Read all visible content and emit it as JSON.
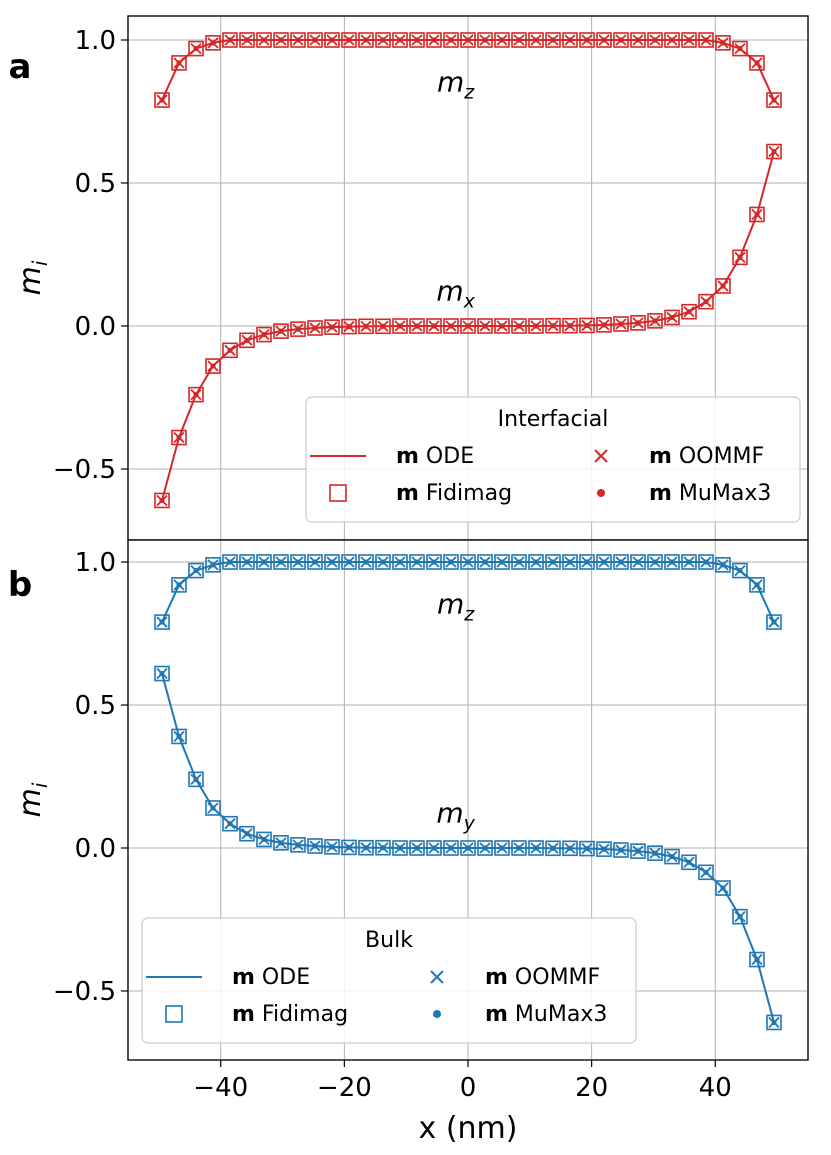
{
  "chart_data": [
    {
      "panel": "a",
      "type": "line",
      "title": "",
      "xlabel": "x (nm)",
      "ylabel": "m_i",
      "xlim": [
        -55,
        55
      ],
      "ylim": [
        -0.7,
        1.05
      ],
      "xticks": [
        -40,
        -20,
        0,
        20,
        40
      ],
      "yticks": [
        1.0,
        0.5,
        0.0,
        -0.5
      ],
      "xtick_labels": [
        "−40",
        "−20",
        "0",
        "20",
        "40"
      ],
      "ytick_labels": [
        "1.0",
        "0.5",
        "0.0",
        "−0.5"
      ],
      "grid": true,
      "color": "#d62728",
      "curve_labels": [
        {
          "base": "m",
          "sub": "z",
          "x": -2,
          "y": 0.82
        },
        {
          "base": "m",
          "sub": "x",
          "x": -2,
          "y": 0.09
        }
      ],
      "legend": {
        "title": "Interfacial",
        "entries": [
          {
            "bold": "m",
            "text": " ODE",
            "marker": "line"
          },
          {
            "bold": "m",
            "text": " OOMMF",
            "marker": "x"
          },
          {
            "bold": "m",
            "text": " Fidimag",
            "marker": "square"
          },
          {
            "bold": "m",
            "text": " MuMax3",
            "marker": "dot"
          }
        ],
        "placement": "lower-right"
      },
      "series": [
        {
          "name": "m_z",
          "values": [
            0.79,
            0.92,
            0.97,
            0.99,
            1.0,
            1.0,
            1.0,
            1.0,
            1.0,
            1.0,
            1.0,
            1.0,
            1.0,
            1.0,
            1.0,
            1.0,
            1.0,
            1.0,
            1.0,
            1.0,
            1.0,
            1.0,
            1.0,
            1.0,
            1.0,
            1.0,
            1.0,
            1.0,
            1.0,
            1.0,
            1.0,
            1.0,
            1.0,
            0.99,
            0.97,
            0.92,
            0.79
          ]
        },
        {
          "name": "m_x",
          "values": [
            -0.61,
            -0.39,
            -0.24,
            -0.14,
            -0.085,
            -0.05,
            -0.03,
            -0.018,
            -0.011,
            -0.007,
            -0.004,
            -0.002,
            -0.001,
            -0.001,
            0.0,
            0.0,
            0.0,
            0.0,
            0.0,
            0.0,
            0.0,
            0.0,
            0.0,
            0.001,
            0.001,
            0.002,
            0.004,
            0.007,
            0.011,
            0.018,
            0.03,
            0.05,
            0.085,
            0.14,
            0.24,
            0.39,
            0.61
          ]
        }
      ],
      "x": [
        -49.5,
        -46.75,
        -44.0,
        -41.25,
        -38.5,
        -35.75,
        -33.0,
        -30.25,
        -27.5,
        -24.75,
        -22.0,
        -19.25,
        -16.5,
        -13.75,
        -11.0,
        -8.25,
        -5.5,
        -2.75,
        0.0,
        2.75,
        5.5,
        8.25,
        11.0,
        13.75,
        16.5,
        19.25,
        22.0,
        24.75,
        27.5,
        30.25,
        33.0,
        35.75,
        38.5,
        41.25,
        44.0,
        46.75,
        49.5
      ]
    },
    {
      "panel": "b",
      "type": "line",
      "title": "",
      "xlabel": "x (nm)",
      "ylabel": "m_i",
      "xlim": [
        -55,
        55
      ],
      "ylim": [
        -0.75,
        1.05
      ],
      "xticks": [
        -40,
        -20,
        0,
        20,
        40
      ],
      "yticks": [
        1.0,
        0.5,
        0.0,
        -0.5
      ],
      "xtick_labels": [
        "−40",
        "−20",
        "0",
        "20",
        "40"
      ],
      "ytick_labels": [
        "1.0",
        "0.5",
        "0.0",
        "−0.5"
      ],
      "grid": true,
      "color": "#1f77b4",
      "curve_labels": [
        {
          "base": "m",
          "sub": "z",
          "x": -2,
          "y": 0.82
        },
        {
          "base": "m",
          "sub": "y",
          "x": -2,
          "y": 0.09
        }
      ],
      "legend": {
        "title": "Bulk",
        "entries": [
          {
            "bold": "m",
            "text": " ODE",
            "marker": "line"
          },
          {
            "bold": "m",
            "text": " OOMMF",
            "marker": "x"
          },
          {
            "bold": "m",
            "text": " Fidimag",
            "marker": "square"
          },
          {
            "bold": "m",
            "text": " MuMax3",
            "marker": "dot"
          }
        ],
        "placement": "lower-left"
      },
      "series": [
        {
          "name": "m_z",
          "values": [
            0.79,
            0.92,
            0.97,
            0.99,
            1.0,
            1.0,
            1.0,
            1.0,
            1.0,
            1.0,
            1.0,
            1.0,
            1.0,
            1.0,
            1.0,
            1.0,
            1.0,
            1.0,
            1.0,
            1.0,
            1.0,
            1.0,
            1.0,
            1.0,
            1.0,
            1.0,
            1.0,
            1.0,
            1.0,
            1.0,
            1.0,
            1.0,
            1.0,
            0.99,
            0.97,
            0.92,
            0.79
          ]
        },
        {
          "name": "m_y",
          "values": [
            0.61,
            0.39,
            0.24,
            0.14,
            0.085,
            0.05,
            0.03,
            0.018,
            0.011,
            0.007,
            0.004,
            0.002,
            0.001,
            0.001,
            0.0,
            0.0,
            0.0,
            0.0,
            0.0,
            0.0,
            0.0,
            0.0,
            0.0,
            -0.001,
            -0.001,
            -0.002,
            -0.004,
            -0.007,
            -0.011,
            -0.018,
            -0.03,
            -0.05,
            -0.085,
            -0.14,
            -0.24,
            -0.39,
            -0.61
          ]
        }
      ],
      "x": [
        -49.5,
        -46.75,
        -44.0,
        -41.25,
        -38.5,
        -35.75,
        -33.0,
        -30.25,
        -27.5,
        -24.75,
        -22.0,
        -19.25,
        -16.5,
        -13.75,
        -11.0,
        -8.25,
        -5.5,
        -2.75,
        0.0,
        2.75,
        5.5,
        8.25,
        11.0,
        13.75,
        16.5,
        19.25,
        22.0,
        24.75,
        27.5,
        30.25,
        33.0,
        35.75,
        38.5,
        41.25,
        44.0,
        46.75,
        49.5
      ]
    }
  ]
}
